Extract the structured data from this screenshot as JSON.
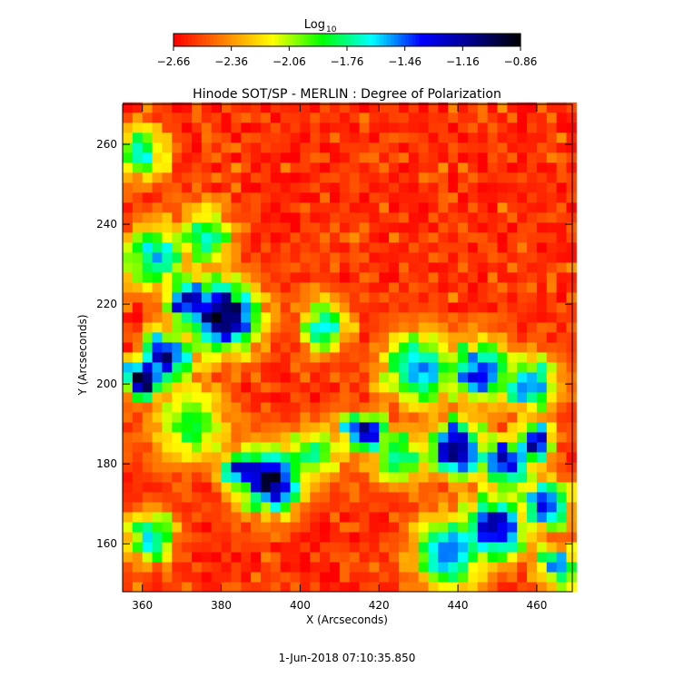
{
  "chart_data": {
    "type": "heatmap",
    "title": "Hinode SOT/SP - MERLIN : Degree of Polarization",
    "xlabel": "X (Arcseconds)",
    "ylabel": "Y (Arcseconds)",
    "xlim": [
      355,
      469
    ],
    "ylim": [
      148,
      270
    ],
    "x_ticks": [
      360,
      380,
      400,
      420,
      440,
      460
    ],
    "y_ticks": [
      160,
      180,
      200,
      220,
      240,
      260
    ],
    "grid": false,
    "colorbar": {
      "label_main": "Log",
      "label_sub": "10",
      "range": [
        -2.66,
        -0.86
      ],
      "ticks": [
        -2.66,
        -2.36,
        -2.06,
        -1.76,
        -1.46,
        -1.16,
        -0.86
      ],
      "tick_labels": [
        "−2.66",
        "−2.36",
        "−2.06",
        "−1.76",
        "−1.46",
        "−1.16",
        "−0.86"
      ],
      "colors": [
        "#ff0000",
        "#ff8000",
        "#ffff00",
        "#00ff00",
        "#00ffff",
        "#0000ff",
        "#00008a",
        "#000000"
      ]
    },
    "field": {
      "background_log10": -2.6,
      "features": [
        {
          "x": 366,
          "y": 207,
          "radius": 6,
          "peak_log10": -1.05
        },
        {
          "x": 360,
          "y": 201,
          "radius": 5,
          "peak_log10": -0.95
        },
        {
          "x": 380,
          "y": 217,
          "radius": 9,
          "peak_log10": -0.9
        },
        {
          "x": 372,
          "y": 221,
          "radius": 6,
          "peak_log10": -1.15
        },
        {
          "x": 392,
          "y": 176,
          "radius": 8,
          "peak_log10": -0.9
        },
        {
          "x": 385,
          "y": 179,
          "radius": 5,
          "peak_log10": -1.2
        },
        {
          "x": 416,
          "y": 188,
          "radius": 5,
          "peak_log10": -0.95
        },
        {
          "x": 440,
          "y": 184,
          "radius": 7,
          "peak_log10": -1.0
        },
        {
          "x": 452,
          "y": 180,
          "radius": 6,
          "peak_log10": -1.1
        },
        {
          "x": 449,
          "y": 164,
          "radius": 8,
          "peak_log10": -1.1
        },
        {
          "x": 462,
          "y": 170,
          "radius": 6,
          "peak_log10": -1.2
        },
        {
          "x": 459,
          "y": 185,
          "radius": 5,
          "peak_log10": -1.15
        },
        {
          "x": 363,
          "y": 232,
          "radius": 8,
          "peak_log10": -1.55
        },
        {
          "x": 360,
          "y": 258,
          "radius": 6,
          "peak_log10": -1.6
        },
        {
          "x": 376,
          "y": 237,
          "radius": 7,
          "peak_log10": -1.7
        },
        {
          "x": 406,
          "y": 215,
          "radius": 6,
          "peak_log10": -1.55
        },
        {
          "x": 430,
          "y": 204,
          "radius": 9,
          "peak_log10": -1.45
        },
        {
          "x": 445,
          "y": 203,
          "radius": 8,
          "peak_log10": -1.35
        },
        {
          "x": 458,
          "y": 200,
          "radius": 7,
          "peak_log10": -1.45
        },
        {
          "x": 425,
          "y": 182,
          "radius": 7,
          "peak_log10": -1.65
        },
        {
          "x": 404,
          "y": 183,
          "radius": 7,
          "peak_log10": -1.8
        },
        {
          "x": 362,
          "y": 162,
          "radius": 6,
          "peak_log10": -1.5
        },
        {
          "x": 372,
          "y": 190,
          "radius": 10,
          "peak_log10": -1.85
        },
        {
          "x": 438,
          "y": 158,
          "radius": 9,
          "peak_log10": -1.45
        },
        {
          "x": 465,
          "y": 155,
          "radius": 5,
          "peak_log10": -1.4
        }
      ]
    }
  },
  "footer": {
    "timestamp": "1-Jun-2018 07:10:35.850"
  }
}
